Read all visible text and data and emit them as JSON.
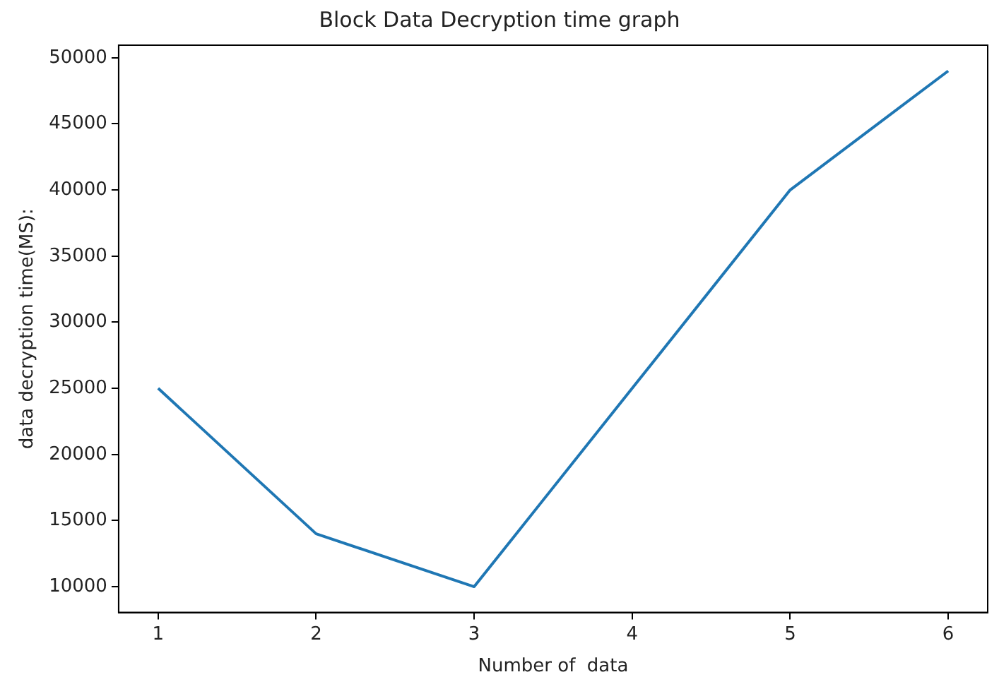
{
  "chart_data": {
    "type": "line",
    "title": "Block Data Decryption time graph",
    "xlabel": "Number of  data",
    "ylabel": "data decryption time(MS):",
    "x": [
      1,
      2,
      3,
      4,
      5,
      6
    ],
    "series": [
      {
        "color": "#1f77b4",
        "values": [
          25000,
          14000,
          10000,
          25000,
          40000,
          49000
        ]
      }
    ],
    "xlim": [
      0.75,
      6.25
    ],
    "xticks": [
      1,
      2,
      3,
      4,
      5,
      6
    ],
    "ylim": [
      8050,
      50950
    ],
    "yticks": [
      10000,
      15000,
      20000,
      25000,
      30000,
      35000,
      40000,
      45000,
      50000
    ],
    "grid": false,
    "legend": false,
    "marker": "none",
    "line_style": "solid"
  }
}
